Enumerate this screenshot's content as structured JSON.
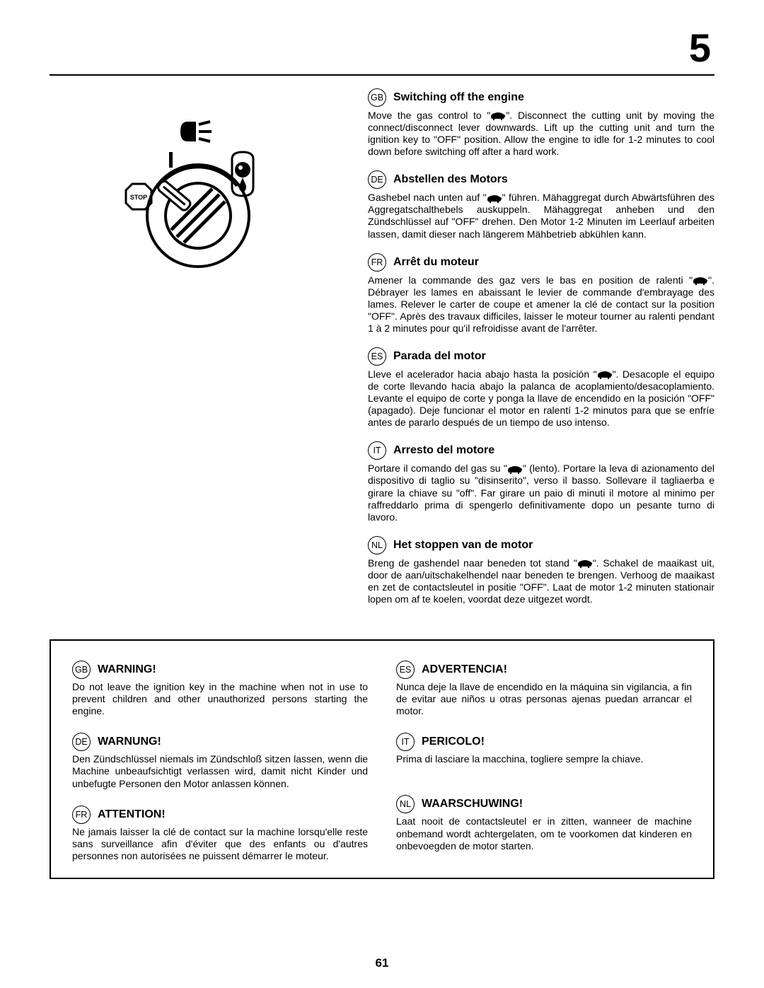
{
  "section_number": "5",
  "page_number": "61",
  "illustration": {
    "stop_label": "STOP"
  },
  "instructions": [
    {
      "code": "GB",
      "title": "Switching off the engine",
      "body": "Move the gas control to \"▇\".  Disconnect the cutting unit by moving the connect/disconnect lever downwards.  Lift up the cutting unit and turn the ignition key to \"OFF\" position.  Allow the engine to idle for 1-2 minutes to cool down before switching off after a hard work."
    },
    {
      "code": "DE",
      "title": "Abstellen des Motors",
      "body": "Gashebel nach unten auf \"▇\" führen.  Mähaggregat durch Abwärtsführen des Aggregatschalthebels auskuppeln. Mähaggregat anheben und den Zündschlüssel auf \"OFF\" drehen.  Den Motor 1-2 Minuten im Leerlauf arbeiten lassen, damit dieser nach längerem Mähbetrieb abkühlen kann."
    },
    {
      "code": "FR",
      "title": "Arrêt du moteur",
      "body": "Amener la commande des gaz vers le bas en position de ralenti \"▇\". Débrayer les lames en abaissant le levier de commande d'embrayage des lames. Relever le carter de coupe et amener la clé de contact sur la position \"OFF\". Après des travaux difficiles, laisser le moteur tourner au ralenti pendant 1 à 2 minutes pour qu'il refroidisse avant de l'arrêter."
    },
    {
      "code": "ES",
      "title": "Parada del motor",
      "body": "Lleve el acelerador hacia abajo hasta la posición \"▇\". Desacople el equipo de corte llevando hacia abajo la palanca de acoplamiento/desacoplamiento.  Levante el equipo de corte y ponga la llave de encendido en la posición \"OFF\" (apagado).  Deje funcionar el motor en ralentí 1-2 minutos para que se enfríe antes de pararlo después de un tiempo de uso intenso."
    },
    {
      "code": "IT",
      "title": "Arresto del motore",
      "body": "Portare il comando del gas su \"▇\" (lento).  Portare la leva di azionamento del dispositivo di taglio su \"disinserito\", verso il basso.  Sollevare il tagliaerba e girare la chiave su \"off\".  Far girare un paio di minuti il motore al minimo per raffreddarlo prima di spengerlo definitivamente dopo un pesante turno di lavoro."
    },
    {
      "code": "NL",
      "title": "Het stoppen van de motor",
      "body": "Breng de gashendel naar beneden tot stand \"▇\".  Schakel de maaikast uit, door de aan/uitschakelhendel naar beneden te brengen.  Verhoog de maaikast en zet de contactsleutel in positie \"OFF\".  Laat de motor 1-2 minuten stationair lopen om af te koelen, voordat deze uitgezet wordt."
    }
  ],
  "warnings_left": [
    {
      "code": "GB",
      "title": "WARNING!",
      "body": "Do not leave the ignition key in the machine when not in use to prevent children and other unauthorized persons starting the engine."
    },
    {
      "code": "DE",
      "title": "WARNUNG!",
      "body": "Den Zündschlüssel niemals im Zündschloß sitzen lassen, wenn die Machine unbeaufsichtigt verlassen wird, damit nicht Kinder und unbefugte Personen den Motor anlassen können."
    },
    {
      "code": "FR",
      "title": "ATTENTION!",
      "body": "Ne jamais laisser la clé de contact sur la machine lorsqu'elle reste sans surveillance afin d'éviter que des enfants ou d'autres personnes non autorisées ne puissent démarrer le moteur."
    }
  ],
  "warnings_right": [
    {
      "code": "ES",
      "title": "ADVERTENCIA!",
      "body": "Nunca deje la llave de encendido en la máquina sin vigilancia, a fin de evitar aue niños u otras personas ajenas puedan arrancar el motor."
    },
    {
      "code": "IT",
      "title": "PERICOLO!",
      "body": "Prima di lasciare la macchina, togliere sempre la chiave."
    },
    {
      "code": "NL",
      "title": "WAARSCHUWING!",
      "body": "Laat nooit de contactsleutel er in zitten, wanneer de machine onbemand wordt achtergelaten, om te voorkomen dat kinderen en onbevoegden de motor starten."
    }
  ]
}
